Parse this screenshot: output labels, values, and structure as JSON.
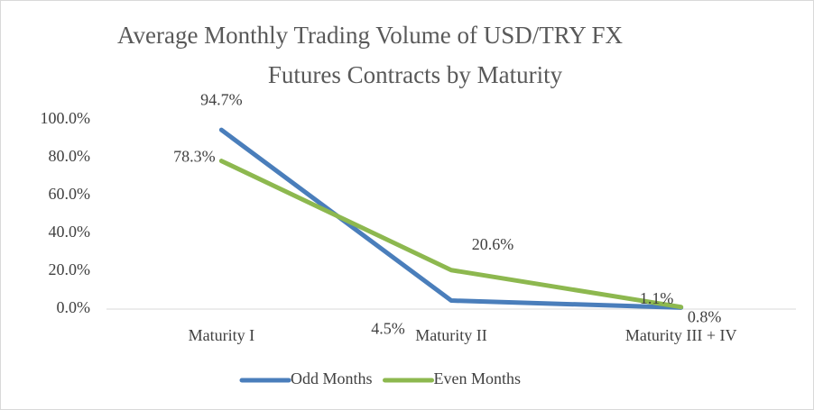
{
  "chart_data": {
    "type": "line",
    "title": [
      "Average Monthly Trading Volume of USD/TRY FX",
      "Futures Contracts  by Maturity"
    ],
    "categories": [
      "Maturity I",
      "Maturity II",
      "Maturity III + IV"
    ],
    "series": [
      {
        "name": "Odd Months",
        "color": "#4a7ebb",
        "values": [
          94.7,
          4.5,
          0.8
        ],
        "value_labels": [
          "94.7%",
          "4.5%",
          "0.8%"
        ]
      },
      {
        "name": "Even Months",
        "color": "#8db84f",
        "values": [
          78.3,
          20.6,
          1.1
        ],
        "value_labels": [
          "78.3%",
          "20.6%",
          "1.1%"
        ]
      }
    ],
    "ylim": [
      0,
      100
    ],
    "yticks": [
      {
        "value": 0,
        "label": "0.0%"
      },
      {
        "value": 20,
        "label": "20.0%"
      },
      {
        "value": 40,
        "label": "40.0%"
      },
      {
        "value": 60,
        "label": "60.0%"
      },
      {
        "value": 80,
        "label": "80.0%"
      },
      {
        "value": 100,
        "label": "100.0%"
      }
    ],
    "legend": "bottom"
  }
}
